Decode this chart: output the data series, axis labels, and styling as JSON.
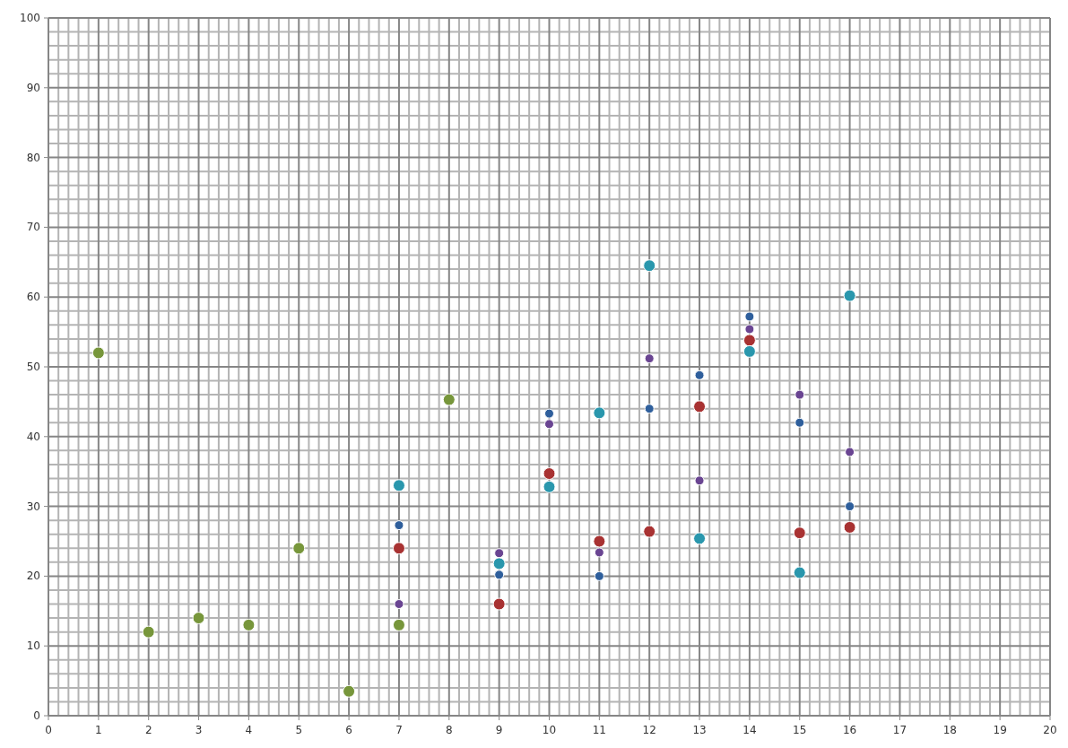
{
  "chart_data": {
    "type": "scatter",
    "xlim": [
      0,
      20
    ],
    "ylim": [
      0,
      100
    ],
    "xticks": [
      0,
      1,
      2,
      3,
      4,
      5,
      6,
      7,
      8,
      9,
      10,
      11,
      12,
      13,
      14,
      15,
      16,
      17,
      18,
      19,
      20
    ],
    "yticks": [
      0,
      10,
      20,
      30,
      40,
      50,
      60,
      70,
      80,
      90,
      100
    ],
    "grid": true,
    "marker": "circle",
    "series": [
      {
        "color": "#77963b",
        "x": [
          1,
          2,
          3,
          4,
          5,
          6,
          7,
          8
        ],
        "values": [
          52,
          12,
          14,
          13,
          24,
          3.5,
          13,
          45.3
        ]
      },
      {
        "color": "#2f5f9c",
        "x": [
          7,
          9,
          10,
          11,
          12,
          13,
          14,
          15,
          16
        ],
        "values": [
          27.3,
          20.2,
          43.3,
          20,
          44,
          48.8,
          57.2,
          42,
          30
        ]
      },
      {
        "color": "#6a4592",
        "x": [
          7,
          9,
          10,
          11,
          12,
          13,
          14,
          15,
          16
        ],
        "values": [
          16,
          23.3,
          41.8,
          23.4,
          51.2,
          33.7,
          55.4,
          46,
          37.8
        ]
      },
      {
        "color": "#a83232",
        "x": [
          7,
          9,
          10,
          11,
          12,
          13,
          14,
          15,
          16
        ],
        "values": [
          24,
          16,
          34.7,
          25,
          26.4,
          44.3,
          53.8,
          26.2,
          27
        ]
      },
      {
        "color": "#2a97ad",
        "x": [
          7,
          9,
          10,
          11,
          12,
          13,
          14,
          15,
          16
        ],
        "values": [
          33,
          21.8,
          32.8,
          43.4,
          64.5,
          25.4,
          52.2,
          20.5,
          60.2
        ]
      }
    ]
  }
}
